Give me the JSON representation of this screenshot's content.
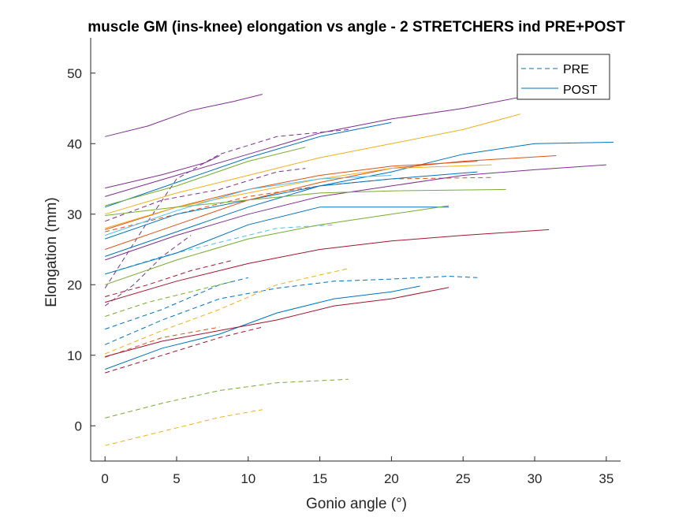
{
  "chart_data": {
    "type": "line",
    "title": "muscle GM (ins-knee) elongation vs angle - 2 STRETCHERS ind PRE+POST",
    "xlabel": "Gonio angle (°)",
    "ylabel": "Elongation (mm)",
    "xlim": [
      -1,
      36
    ],
    "ylim": [
      -5,
      55
    ],
    "xticks": [
      0,
      5,
      10,
      15,
      20,
      25,
      30,
      35
    ],
    "yticks": [
      0,
      10,
      20,
      30,
      40,
      50
    ],
    "grid": false,
    "legend": {
      "position": "top-right",
      "entries": [
        {
          "label": "PRE",
          "style": "dashed",
          "color": "#0072BD"
        },
        {
          "label": "POST",
          "style": "solid",
          "color": "#0072BD"
        }
      ]
    },
    "series": [
      {
        "style": "dashed",
        "color": "#0072BD",
        "points": [
          [
            0,
            11.5
          ],
          [
            4,
            15
          ],
          [
            8,
            18
          ],
          [
            12,
            19.5
          ],
          [
            16,
            20.5
          ],
          [
            20,
            20.8
          ],
          [
            24,
            21.2
          ],
          [
            26,
            21
          ]
        ]
      },
      {
        "style": "dashed",
        "color": "#0072BD",
        "points": [
          [
            0,
            13.7
          ],
          [
            4,
            16.5
          ],
          [
            8,
            20
          ],
          [
            10,
            21
          ]
        ]
      },
      {
        "style": "dashed",
        "color": "#D95319",
        "points": [
          [
            0,
            9.7
          ],
          [
            4,
            12.5
          ],
          [
            8,
            14
          ]
        ]
      },
      {
        "style": "dashed",
        "color": "#D95319",
        "points": [
          [
            0,
            27.5
          ],
          [
            5,
            30
          ],
          [
            10,
            32.5
          ],
          [
            15,
            34
          ],
          [
            20,
            35
          ],
          [
            27,
            35.2
          ]
        ]
      },
      {
        "style": "dashed",
        "color": "#EDB120",
        "points": [
          [
            0,
            10.2
          ],
          [
            4,
            13.5
          ],
          [
            8,
            16.5
          ],
          [
            12,
            20
          ],
          [
            17,
            22.3
          ]
        ]
      },
      {
        "style": "dashed",
        "color": "#EDB120",
        "points": [
          [
            0,
            -2.8
          ],
          [
            4,
            -0.8
          ],
          [
            8,
            1.2
          ],
          [
            11,
            2.3
          ]
        ]
      },
      {
        "style": "dashed",
        "color": "#7E2F8E",
        "points": [
          [
            0,
            29
          ],
          [
            4,
            32
          ],
          [
            8,
            33.5
          ],
          [
            12,
            36
          ],
          [
            14,
            36.5
          ]
        ]
      },
      {
        "style": "dashed",
        "color": "#7E2F8E",
        "points": [
          [
            0,
            17
          ],
          [
            2,
            20
          ],
          [
            4,
            24
          ],
          [
            6,
            27
          ]
        ]
      },
      {
        "style": "dashed",
        "color": "#7E2F8E",
        "points": [
          [
            0,
            19.5
          ],
          [
            3,
            29
          ],
          [
            5,
            35
          ],
          [
            8,
            38.5
          ],
          [
            12,
            41
          ],
          [
            17,
            42
          ]
        ]
      },
      {
        "style": "dashed",
        "color": "#77AC30",
        "points": [
          [
            0,
            1.1
          ],
          [
            4,
            3.2
          ],
          [
            8,
            5
          ],
          [
            12,
            6.1
          ],
          [
            17,
            6.6
          ]
        ]
      },
      {
        "style": "dashed",
        "color": "#77AC30",
        "points": [
          [
            0,
            15.5
          ],
          [
            3,
            17.5
          ],
          [
            7,
            19.5
          ],
          [
            9,
            20.5
          ]
        ]
      },
      {
        "style": "dashed",
        "color": "#4DBEEE",
        "points": [
          [
            0,
            21.5
          ],
          [
            4,
            24
          ],
          [
            8,
            26
          ],
          [
            12,
            28
          ],
          [
            16,
            28.5
          ]
        ]
      },
      {
        "style": "dashed",
        "color": "#A2142F",
        "points": [
          [
            0,
            7.5
          ],
          [
            4,
            10
          ],
          [
            8,
            12.5
          ],
          [
            11,
            14
          ]
        ]
      },
      {
        "style": "dashed",
        "color": "#A2142F",
        "points": [
          [
            0,
            18.3
          ],
          [
            3,
            20
          ],
          [
            6,
            22
          ],
          [
            9,
            23.5
          ]
        ]
      },
      {
        "style": "solid",
        "color": "#0072BD",
        "points": [
          [
            0,
            24
          ],
          [
            5,
            27.5
          ],
          [
            10,
            31
          ],
          [
            15,
            34
          ],
          [
            20,
            35
          ],
          [
            26,
            36
          ]
        ]
      },
      {
        "style": "solid",
        "color": "#0072BD",
        "points": [
          [
            0,
            21.5
          ],
          [
            5,
            24.5
          ],
          [
            10,
            28.5
          ],
          [
            15,
            31
          ],
          [
            20,
            31
          ],
          [
            24,
            31
          ]
        ]
      },
      {
        "style": "solid",
        "color": "#0072BD",
        "points": [
          [
            0,
            8
          ],
          [
            4,
            11
          ],
          [
            8,
            13
          ],
          [
            12,
            16
          ],
          [
            16,
            18
          ],
          [
            20,
            19
          ],
          [
            22,
            19.8
          ]
        ]
      },
      {
        "style": "solid",
        "color": "#0072BD",
        "points": [
          [
            0,
            26.5
          ],
          [
            5,
            30
          ],
          [
            10,
            32
          ],
          [
            15,
            34
          ],
          [
            20,
            36
          ],
          [
            25,
            38.5
          ],
          [
            30,
            40
          ],
          [
            35.5,
            40.2
          ]
        ]
      },
      {
        "style": "solid",
        "color": "#0072BD",
        "points": [
          [
            0,
            31
          ],
          [
            5,
            34.5
          ],
          [
            10,
            38
          ],
          [
            15,
            41
          ],
          [
            20,
            43
          ]
        ]
      },
      {
        "style": "solid",
        "color": "#D95319",
        "points": [
          [
            0,
            27.8
          ],
          [
            5,
            31
          ],
          [
            10,
            33.5
          ],
          [
            15,
            35.5
          ],
          [
            20,
            36.8
          ],
          [
            26,
            37.5
          ]
        ]
      },
      {
        "style": "solid",
        "color": "#D95319",
        "points": [
          [
            0,
            25
          ],
          [
            5,
            28.5
          ],
          [
            10,
            32
          ],
          [
            15,
            34.5
          ],
          [
            20,
            36.5
          ],
          [
            25,
            37.5
          ],
          [
            31.5,
            38.3
          ]
        ]
      },
      {
        "style": "solid",
        "color": "#EDB120",
        "points": [
          [
            0,
            30
          ],
          [
            5,
            33
          ],
          [
            10,
            35.5
          ],
          [
            15,
            38
          ],
          [
            20,
            40
          ],
          [
            25,
            42
          ],
          [
            29,
            44.2
          ]
        ]
      },
      {
        "style": "solid",
        "color": "#EDB120",
        "points": [
          [
            0,
            28
          ],
          [
            5,
            31
          ],
          [
            10,
            33
          ],
          [
            15,
            35
          ],
          [
            20,
            36.5
          ],
          [
            27,
            37
          ]
        ]
      },
      {
        "style": "solid",
        "color": "#7E2F8E",
        "points": [
          [
            0,
            41
          ],
          [
            3,
            42.5
          ],
          [
            6,
            44.7
          ],
          [
            9,
            46
          ],
          [
            11,
            47
          ]
        ]
      },
      {
        "style": "solid",
        "color": "#7E2F8E",
        "points": [
          [
            0,
            33.7
          ],
          [
            4,
            35.6
          ],
          [
            7,
            37.3
          ],
          [
            8,
            38.3
          ]
        ]
      },
      {
        "style": "solid",
        "color": "#7E2F8E",
        "points": [
          [
            0,
            32.5
          ],
          [
            5,
            35.5
          ],
          [
            10,
            38.5
          ],
          [
            15,
            41.5
          ],
          [
            20,
            43.5
          ],
          [
            25,
            45
          ],
          [
            30,
            47
          ],
          [
            31,
            47.2
          ]
        ]
      },
      {
        "style": "solid",
        "color": "#7E2F8E",
        "points": [
          [
            0,
            23.5
          ],
          [
            5,
            27
          ],
          [
            10,
            30
          ],
          [
            15,
            32.5
          ],
          [
            20,
            34
          ],
          [
            25,
            35.5
          ],
          [
            30,
            36.3
          ],
          [
            35,
            37
          ]
        ]
      },
      {
        "style": "solid",
        "color": "#77AC30",
        "points": [
          [
            0,
            31.2
          ],
          [
            5,
            34
          ],
          [
            10,
            37.5
          ],
          [
            14,
            39.5
          ]
        ]
      },
      {
        "style": "solid",
        "color": "#77AC30",
        "points": [
          [
            0,
            20
          ],
          [
            5,
            23.5
          ],
          [
            10,
            26.5
          ],
          [
            15,
            28.5
          ],
          [
            20,
            30
          ],
          [
            24,
            31.2
          ]
        ]
      },
      {
        "style": "solid",
        "color": "#77AC30",
        "points": [
          [
            0,
            29.8
          ],
          [
            5,
            31
          ],
          [
            10,
            32
          ],
          [
            15,
            33
          ],
          [
            20,
            33.3
          ],
          [
            28,
            33.5
          ]
        ]
      },
      {
        "style": "solid",
        "color": "#4DBEEE",
        "points": [
          [
            0,
            27
          ],
          [
            5,
            30.5
          ],
          [
            10,
            33.5
          ],
          [
            15,
            35
          ],
          [
            20,
            35.5
          ]
        ]
      },
      {
        "style": "solid",
        "color": "#A2142F",
        "points": [
          [
            0,
            9.8
          ],
          [
            4,
            12
          ],
          [
            8,
            13.5
          ],
          [
            12,
            15
          ],
          [
            16,
            17
          ],
          [
            20,
            18
          ],
          [
            24,
            19.6
          ]
        ]
      },
      {
        "style": "solid",
        "color": "#A2142F",
        "points": [
          [
            0,
            17.5
          ],
          [
            5,
            20.5
          ],
          [
            10,
            23
          ],
          [
            15,
            25
          ],
          [
            20,
            26.2
          ],
          [
            25,
            27
          ],
          [
            31,
            27.8
          ]
        ]
      }
    ]
  }
}
